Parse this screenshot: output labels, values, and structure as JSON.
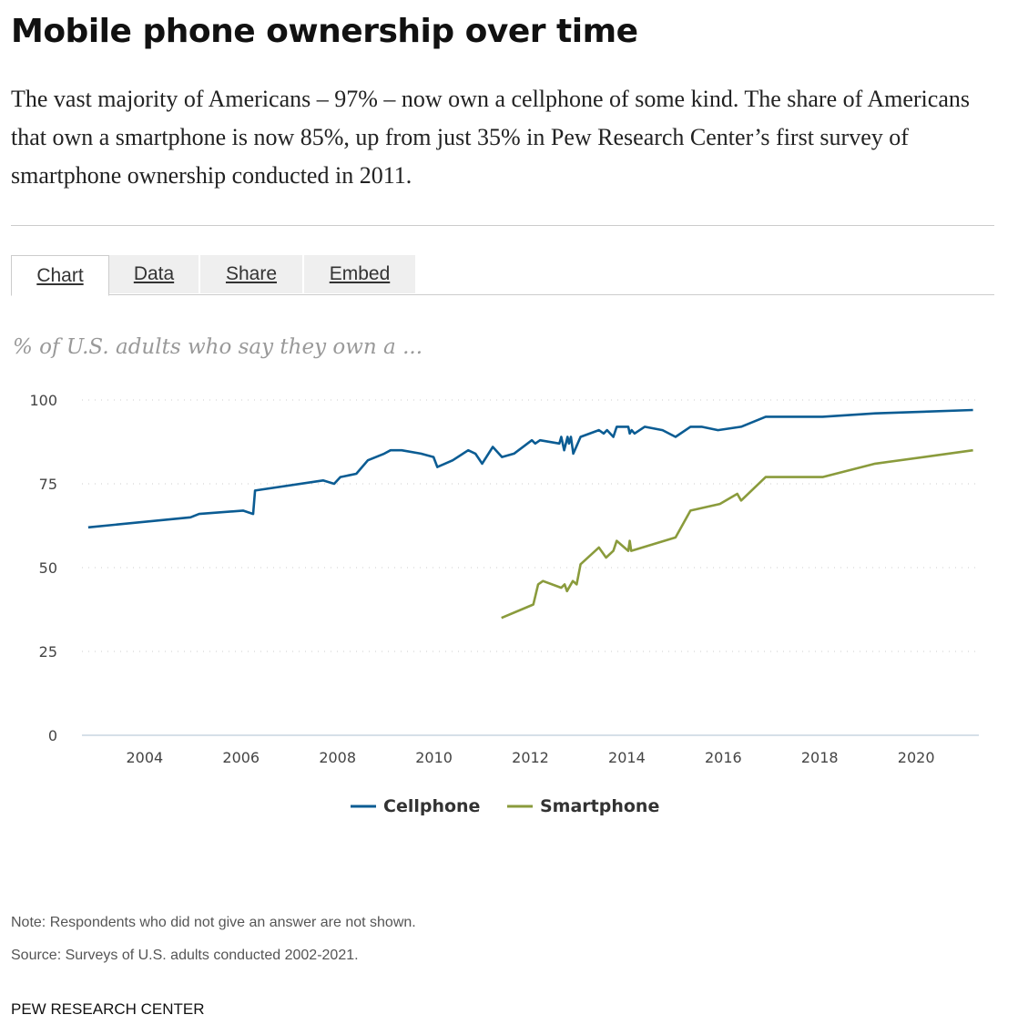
{
  "header": {
    "title": "Mobile phone ownership over time",
    "subtitle": "The vast majority of Americans – 97% – now own a cellphone of some kind. The share of Americans that own a smartphone is now 85%, up from just 35% in Pew Research Center’s first survey of smartphone ownership conducted in 2011."
  },
  "tabs": [
    {
      "label": "Chart",
      "active": true
    },
    {
      "label": "Data",
      "active": false
    },
    {
      "label": "Share",
      "active": false
    },
    {
      "label": "Embed",
      "active": false
    }
  ],
  "chart_data": {
    "type": "line",
    "title": "",
    "subtitle": "% of U.S. adults who say they own a ...",
    "xlabel": "",
    "ylabel": "",
    "xlim": [
      2002.7,
      2021.3
    ],
    "ylim": [
      0,
      100
    ],
    "yticks": [
      0,
      25,
      50,
      75,
      100
    ],
    "xticks": [
      2004,
      2006,
      2008,
      2010,
      2012,
      2014,
      2016,
      2018,
      2020
    ],
    "grid": "horizontal dotted",
    "legend": "bottom-center",
    "series": [
      {
        "name": "Cellphone",
        "color": "#0b5c93",
        "points": [
          [
            2002.83,
            62
          ],
          [
            2004.95,
            65
          ],
          [
            2005.13,
            66
          ],
          [
            2006.04,
            67
          ],
          [
            2006.25,
            66
          ],
          [
            2006.29,
            73
          ],
          [
            2007.7,
            76
          ],
          [
            2007.93,
            75
          ],
          [
            2008.06,
            77
          ],
          [
            2008.39,
            78
          ],
          [
            2008.63,
            82
          ],
          [
            2008.97,
            84
          ],
          [
            2009.1,
            85
          ],
          [
            2009.33,
            85
          ],
          [
            2009.73,
            84
          ],
          [
            2009.99,
            83
          ],
          [
            2010.07,
            80
          ],
          [
            2010.39,
            82
          ],
          [
            2010.71,
            85
          ],
          [
            2010.86,
            84
          ],
          [
            2011.0,
            81
          ],
          [
            2011.22,
            86
          ],
          [
            2011.41,
            83
          ],
          [
            2011.66,
            84
          ],
          [
            2012.03,
            88
          ],
          [
            2012.1,
            87
          ],
          [
            2012.2,
            88
          ],
          [
            2012.6,
            87
          ],
          [
            2012.64,
            89
          ],
          [
            2012.7,
            85
          ],
          [
            2012.77,
            89
          ],
          [
            2012.8,
            87
          ],
          [
            2012.84,
            89
          ],
          [
            2012.89,
            84
          ],
          [
            2013.04,
            89
          ],
          [
            2013.42,
            91
          ],
          [
            2013.52,
            90
          ],
          [
            2013.59,
            91
          ],
          [
            2013.72,
            89
          ],
          [
            2013.79,
            92
          ],
          [
            2014.03,
            92
          ],
          [
            2014.06,
            90
          ],
          [
            2014.1,
            91
          ],
          [
            2014.16,
            90
          ],
          [
            2014.37,
            92
          ],
          [
            2014.74,
            91
          ],
          [
            2015.01,
            89
          ],
          [
            2015.32,
            92
          ],
          [
            2015.55,
            92
          ],
          [
            2015.89,
            91
          ],
          [
            2016.37,
            92
          ],
          [
            2016.88,
            95
          ],
          [
            2018.06,
            95
          ],
          [
            2019.15,
            96
          ],
          [
            2021.18,
            97
          ]
        ]
      },
      {
        "name": "Smartphone",
        "color": "#8a9b3c",
        "points": [
          [
            2011.4,
            35
          ],
          [
            2012.06,
            39
          ],
          [
            2012.16,
            45
          ],
          [
            2012.26,
            46
          ],
          [
            2012.64,
            44
          ],
          [
            2012.71,
            45
          ],
          [
            2012.76,
            43
          ],
          [
            2012.88,
            46
          ],
          [
            2012.96,
            45
          ],
          [
            2013.04,
            51
          ],
          [
            2013.42,
            56
          ],
          [
            2013.57,
            53
          ],
          [
            2013.72,
            55
          ],
          [
            2013.79,
            58
          ],
          [
            2014.03,
            55
          ],
          [
            2014.06,
            58
          ],
          [
            2014.09,
            55
          ],
          [
            2015.01,
            59
          ],
          [
            2015.32,
            67
          ],
          [
            2015.93,
            69
          ],
          [
            2016.29,
            72
          ],
          [
            2016.37,
            70
          ],
          [
            2016.88,
            77
          ],
          [
            2018.06,
            77
          ],
          [
            2019.15,
            81
          ],
          [
            2021.18,
            85
          ]
        ]
      }
    ]
  },
  "footer": {
    "note": "Note: Respondents who did not give an answer are not shown.",
    "source": "Source: Surveys of U.S. adults conducted 2002-2021.",
    "brand": "PEW RESEARCH CENTER"
  }
}
